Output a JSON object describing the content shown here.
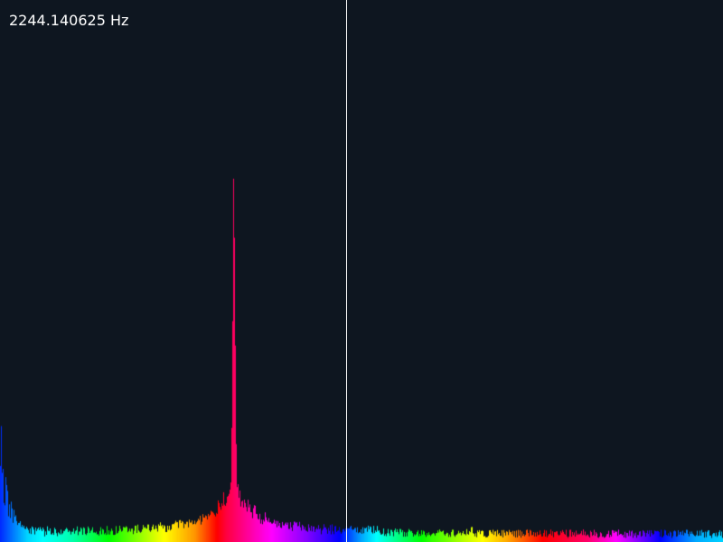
{
  "readout": {
    "frequency": "2244.140625 Hz"
  },
  "cursor": {
    "position_fraction": 0.479
  },
  "spectrum": {
    "background_color": "#0e1620",
    "cursor_color": "#ffffff",
    "peak_position_fraction": 0.323,
    "peak_level_fraction": 0.725,
    "secondary_peak_position_fraction": 0.652,
    "secondary_peak_level_fraction": 0.037,
    "low_end_level_fraction": 0.2,
    "noise_floor_fraction": 0.02,
    "hue_cycle": "blue-cyan-green-yellow-orange-red-magenta-blue"
  }
}
